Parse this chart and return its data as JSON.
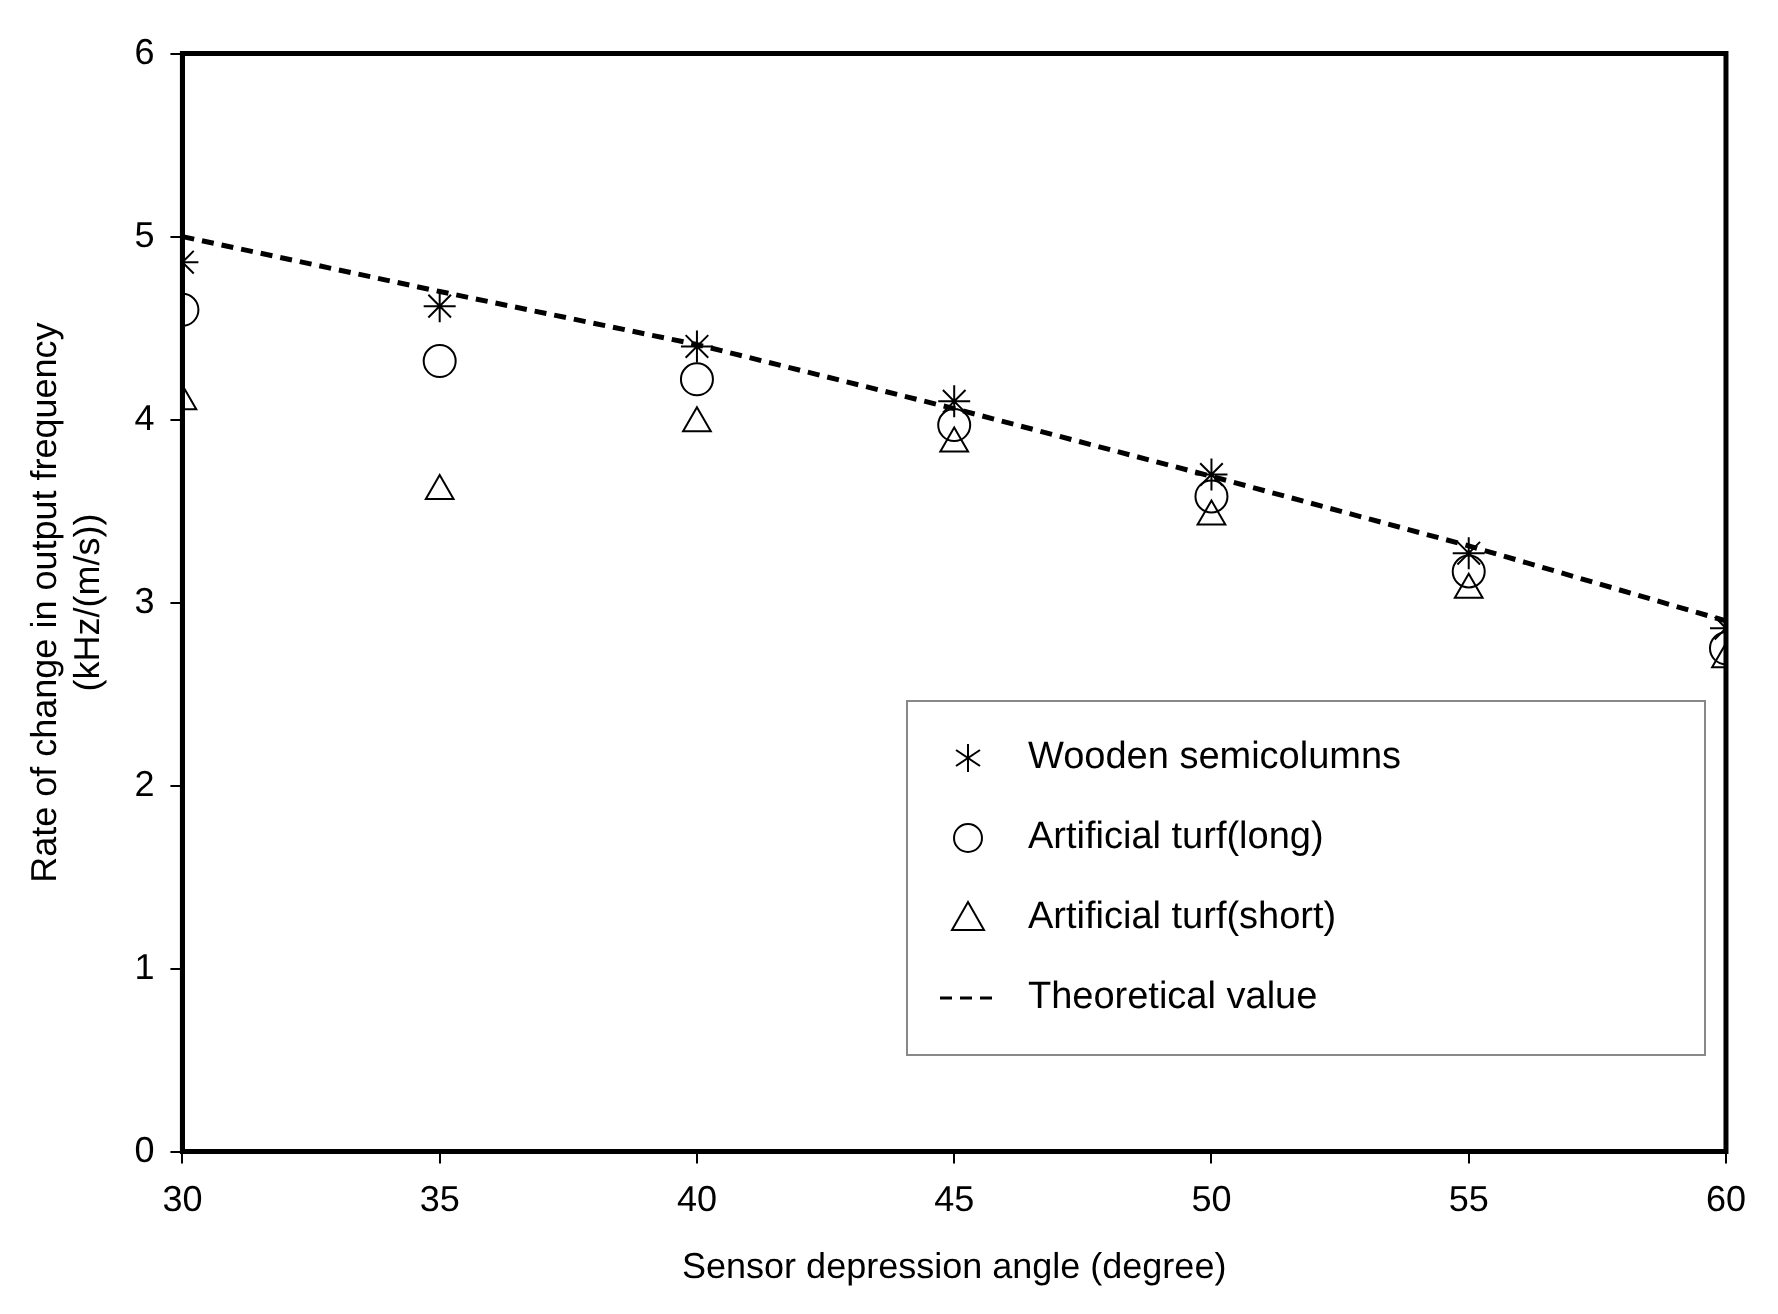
{
  "chart_data": {
    "type": "scatter",
    "xlabel": "Sensor depression angle (degree)",
    "ylabel": "Rate of change in output frequency\n(kHz/(m/s))",
    "x": [
      30,
      35,
      40,
      45,
      50,
      55,
      60
    ],
    "xlim": [
      30,
      60
    ],
    "xticks": [
      30,
      35,
      40,
      45,
      50,
      55,
      60
    ],
    "ylim": [
      0,
      6
    ],
    "yticks": [
      0,
      1,
      2,
      3,
      4,
      5,
      6
    ],
    "grid": false,
    "legend": "bottom right",
    "series": [
      {
        "name": "Wooden semicolumns",
        "color": "#000000",
        "marker": "cross",
        "values": [
          4.86,
          4.62,
          4.4,
          4.1,
          3.7,
          3.27,
          2.86
        ]
      },
      {
        "name": "Artificial turf(long)",
        "color": "#000000",
        "marker": "circle",
        "values": [
          4.6,
          4.32,
          4.22,
          3.97,
          3.58,
          3.17,
          2.75
        ]
      },
      {
        "name": "Artificial turf(short)",
        "color": "#000000",
        "marker": "triangle",
        "values": [
          4.1,
          3.61,
          3.98,
          3.87,
          3.47,
          3.07,
          2.69
        ]
      },
      {
        "name": "Theoretical value",
        "type": "line",
        "color": "#000000",
        "marker": "none",
        "line_style": "dashed",
        "values": [
          5.0,
          4.7,
          4.41,
          4.06,
          3.69,
          3.31,
          2.9
        ]
      }
    ]
  }
}
